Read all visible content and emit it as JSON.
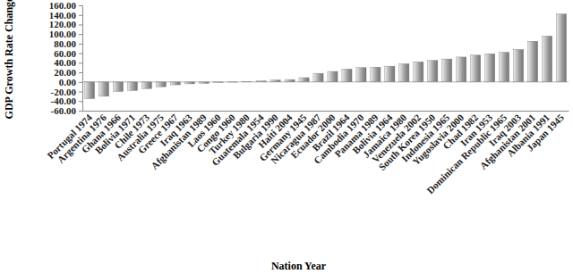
{
  "chart_data": {
    "type": "bar",
    "x_label": "Nation Year",
    "y_label": "GDP Growth Rate Change",
    "categories": [
      "Portugal 1974",
      "Argentina 1976",
      "Ghana 1966",
      "Bolivia 1971",
      "Chile 1973",
      "Australia 1975",
      "Greece 1967",
      "Iraq 1963",
      "Afghanistan 1989",
      "Laos 1960",
      "Congo 1960",
      "Turkey 1980",
      "Guatemala 1954",
      "Bulgaria 1990",
      "Haiti 2004",
      "Germany 1945",
      "Nicaragua 1987",
      "Ecuador 2000",
      "Brazil 1964",
      "Cambodia 1970",
      "Panama 1989",
      "Bolivia 1964",
      "Jamaica 1980",
      "Venezuela 2002",
      "South Korea 1950",
      "Indonesia 1965",
      "Yugoslavia 2000",
      "Chad 1982",
      "Iran 1953",
      "Dominican Republic 1965",
      "Iraq 2003",
      "Afghanistan 2001",
      "Albania 1991",
      "Japan 1945"
    ],
    "values": [
      -35,
      -30,
      -20,
      -18,
      -14,
      -10,
      -6,
      -4,
      -3,
      -1,
      -0.5,
      0.5,
      2,
      4,
      5,
      9,
      18,
      22,
      27,
      30,
      31,
      33,
      38,
      42,
      45,
      48,
      52,
      56,
      59,
      62,
      68,
      85,
      96,
      142
    ],
    "color": "#9a9a9a",
    "ylim": [
      -60,
      160
    ],
    "yticks": [
      {
        "value": -60,
        "label": "-60.00"
      },
      {
        "value": -40,
        "label": "-40.00"
      },
      {
        "value": -20,
        "label": "-20.00"
      },
      {
        "value": 0,
        "label": "0.00"
      },
      {
        "value": 20,
        "label": "20.00"
      },
      {
        "value": 40,
        "label": "40.00"
      },
      {
        "value": 60,
        "label": "60.00"
      },
      {
        "value": 80,
        "label": "80.00"
      },
      {
        "value": 100,
        "label": "100.00"
      },
      {
        "value": 120,
        "label": "120.00"
      },
      {
        "value": 140,
        "label": "140.00"
      },
      {
        "value": 160,
        "label": "160.00"
      }
    ],
    "grid": false
  }
}
